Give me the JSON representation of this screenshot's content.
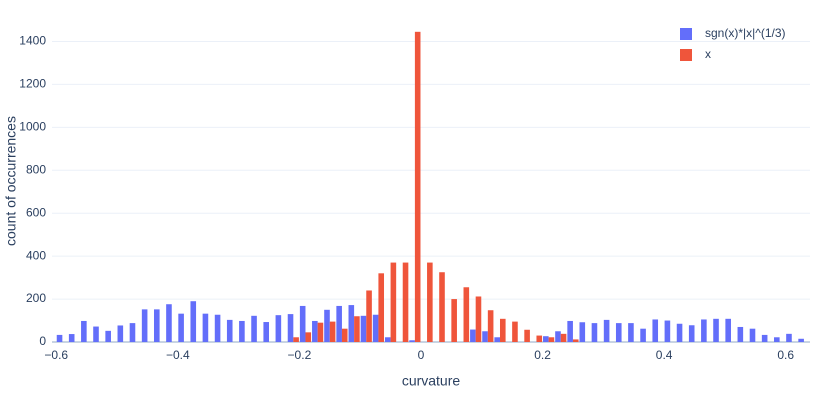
{
  "chart_data": {
    "type": "histogram",
    "x_label": "curvature",
    "y_label": "count of occurrences",
    "bins": [
      -0.6,
      -0.58,
      -0.56,
      -0.54,
      -0.52,
      -0.5,
      -0.48,
      -0.46,
      -0.44,
      -0.42,
      -0.4,
      -0.38,
      -0.36,
      -0.34,
      -0.32,
      -0.3,
      -0.28,
      -0.26,
      -0.24,
      -0.22,
      -0.2,
      -0.18,
      -0.16,
      -0.14,
      -0.12,
      -0.1,
      -0.08,
      -0.06,
      -0.04,
      -0.02,
      0,
      0.02,
      0.04,
      0.06,
      0.08,
      0.1,
      0.12,
      0.14,
      0.16,
      0.18,
      0.2,
      0.22,
      0.24,
      0.26,
      0.28,
      0.3,
      0.32,
      0.34,
      0.36,
      0.38,
      0.4,
      0.42,
      0.44,
      0.46,
      0.48,
      0.5,
      0.52,
      0.54,
      0.56,
      0.58,
      0.6,
      0.62,
      0.64
    ],
    "series": [
      {
        "name": "sgn(x)*|x|^(1/3)",
        "color": "#636efa",
        "values": [
          33,
          37,
          98,
          72,
          52,
          77,
          88,
          152,
          152,
          176,
          132,
          190,
          132,
          127,
          103,
          98,
          122,
          93,
          125,
          130,
          168,
          98,
          150,
          168,
          172,
          122,
          127,
          22,
          0,
          8,
          0,
          0,
          0,
          0,
          58,
          50,
          22,
          0,
          0,
          0,
          27,
          50,
          98,
          92,
          88,
          103,
          88,
          88,
          62,
          105,
          100,
          85,
          78,
          105,
          108,
          108,
          70,
          62,
          33,
          22,
          38,
          15
        ]
      },
      {
        "name": "x",
        "color": "#ef553b",
        "values": [
          0,
          0,
          0,
          0,
          0,
          0,
          0,
          0,
          0,
          0,
          0,
          0,
          0,
          0,
          0,
          0,
          0,
          0,
          0,
          22,
          45,
          90,
          95,
          62,
          120,
          240,
          320,
          370,
          370,
          1445,
          370,
          325,
          200,
          255,
          212,
          148,
          108,
          95,
          57,
          30,
          22,
          38,
          12,
          0,
          0,
          0,
          0,
          0,
          0,
          0,
          0,
          0,
          0,
          0,
          0,
          0,
          0,
          0,
          0,
          0,
          0,
          0
        ]
      }
    ],
    "xlim": [
      -0.607,
      0.64
    ],
    "ylim": [
      0,
      1500
    ],
    "xticks": [
      {
        "value": -0.6,
        "label": "−0.6"
      },
      {
        "value": -0.4,
        "label": "−0.4"
      },
      {
        "value": -0.2,
        "label": "−0.2"
      },
      0,
      0.2,
      0.4,
      0.6
    ],
    "yticks": [
      0,
      200,
      400,
      600,
      800,
      1000,
      1200,
      1400
    ],
    "grid": true,
    "legend": "top-right"
  }
}
